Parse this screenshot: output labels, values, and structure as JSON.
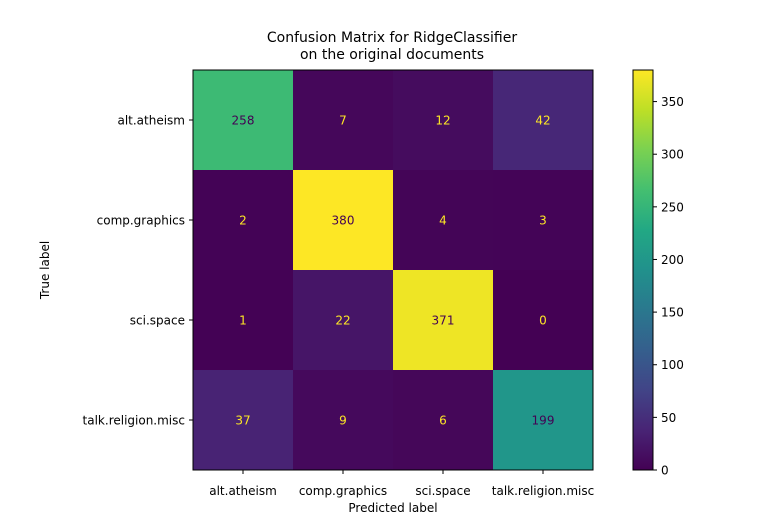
{
  "chart_data": {
    "type": "heatmap",
    "title_lines": [
      "Confusion Matrix for RidgeClassifier",
      "on the original documents"
    ],
    "xlabel": "Predicted label",
    "ylabel": "True label",
    "x_categories": [
      "alt.atheism",
      "comp.graphics",
      "sci.space",
      "talk.religion.misc"
    ],
    "y_categories": [
      "alt.atheism",
      "comp.graphics",
      "sci.space",
      "talk.religion.misc"
    ],
    "values": [
      [
        258,
        7,
        12,
        42
      ],
      [
        2,
        380,
        4,
        3
      ],
      [
        1,
        22,
        371,
        0
      ],
      [
        37,
        9,
        6,
        199
      ]
    ],
    "colormap": "viridis",
    "vmin": 0,
    "vmax": 380,
    "colorbar_ticks": [
      0,
      50,
      100,
      150,
      200,
      250,
      300,
      350
    ],
    "cell_text_colors": {
      "dark": "#fde725",
      "light": "#440154"
    }
  }
}
